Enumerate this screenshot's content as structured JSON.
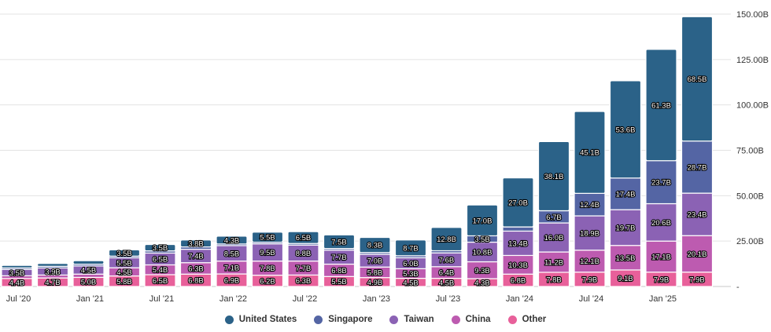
{
  "chart_data": {
    "type": "bar",
    "stacked": true,
    "categories": [
      "Jul '20",
      "Oct '20",
      "Jan '21",
      "Apr '21",
      "Jul '21",
      "Oct '21",
      "Jan '22",
      "Apr '22",
      "Jul '22",
      "Oct '22",
      "Jan '23",
      "Apr '23",
      "Jul '23",
      "Oct '23",
      "Jan '24",
      "Apr '24",
      "Jul '24",
      "Oct '24",
      "Jan '25",
      "Apr '25"
    ],
    "x_tick_labels": [
      {
        "index": 0,
        "label": "Jul '20"
      },
      {
        "index": 2,
        "label": "Jan '21"
      },
      {
        "index": 4,
        "label": "Jul '21"
      },
      {
        "index": 6,
        "label": "Jan '22"
      },
      {
        "index": 8,
        "label": "Jul '22"
      },
      {
        "index": 10,
        "label": "Jan '23"
      },
      {
        "index": 12,
        "label": "Jul '23"
      },
      {
        "index": 14,
        "label": "Jan '24"
      },
      {
        "index": 16,
        "label": "Jul '24"
      },
      {
        "index": 18,
        "label": "Jan '25"
      }
    ],
    "y_ticks": [
      0,
      25,
      50,
      75,
      100,
      125,
      150
    ],
    "y_tick_labels": [
      "-",
      "25.00B",
      "50.00B",
      "75.00B",
      "100.00B",
      "125.00B",
      "150.00B"
    ],
    "ylim": [
      0,
      150
    ],
    "y_axis_side": "right",
    "grid": true,
    "legend_position": "bottom-center",
    "unit_suffix": "B",
    "series": [
      {
        "name": "Other",
        "color": "#e8609a",
        "values": [
          4.4,
          4.7,
          5.0,
          5.8,
          6.5,
          6.8,
          6.9,
          6.2,
          6.3,
          5.5,
          4.9,
          4.5,
          4.5,
          4.3,
          6.8,
          7.8,
          7.9,
          9.1,
          7.9,
          7.9
        ],
        "labels": [
          "4.4B",
          "4.7B",
          "5.0B",
          "5.8B",
          "6.5B",
          "6.8B",
          "6.9B",
          "6.2B",
          "6.3B",
          "5.5B",
          "4.9B",
          "4.5B",
          "4.5B",
          "4.3B",
          "6.8B",
          "7.8B",
          "7.9B",
          "9.1B",
          "7.9B",
          "7.9B"
        ]
      },
      {
        "name": "China",
        "color": "#bd5bb0",
        "values": [
          1.5,
          1.6,
          1.8,
          4.5,
          5.4,
          6.3,
          7.1,
          7.8,
          7.7,
          6.8,
          5.8,
          5.3,
          6.4,
          9.3,
          10.3,
          11.2,
          12.1,
          13.5,
          17.1,
          20.1
        ],
        "labels": [
          "",
          "",
          "",
          "4.5B",
          "5.4B",
          "6.3B",
          "7.1B",
          "7.8B",
          "7.7B",
          "6.8B",
          "5.8B",
          "5.3B",
          "6.4B",
          "9.3B",
          "10.3B",
          "11.2B",
          "12.1B",
          "13.5B",
          "17.1B",
          "20.1B"
        ]
      },
      {
        "name": "Taiwan",
        "color": "#8b62b4",
        "values": [
          3.5,
          3.9,
          4.5,
          5.5,
          6.5,
          7.4,
          8.5,
          9.5,
          8.8,
          7.7,
          7.0,
          6.0,
          7.6,
          10.8,
          13.4,
          16.0,
          18.9,
          19.7,
          20.6,
          23.4
        ],
        "labels": [
          "3.5B",
          "3.9B",
          "4.5B",
          "5.5B",
          "6.5B",
          "7.4B",
          "8.5B",
          "9.5B",
          "8.8B",
          "7.7B",
          "7.0B",
          "6.0B",
          "7.6B",
          "10.8B",
          "13.4B",
          "16.0B",
          "18.9B",
          "19.7B",
          "20.6B",
          "23.4B"
        ]
      },
      {
        "name": "Singapore",
        "color": "#5465a4",
        "values": [
          0.8,
          0.9,
          1.0,
          0.9,
          1.2,
          1.3,
          0.9,
          0.9,
          0.9,
          0.9,
          1.0,
          1.1,
          1.2,
          3.5,
          2.3,
          6.7,
          12.4,
          17.4,
          23.7,
          28.7
        ],
        "labels": [
          "",
          "",
          "",
          "",
          "",
          "",
          "",
          "",
          "",
          "",
          "",
          "",
          "",
          "3.5B",
          "",
          "6.7B",
          "12.4B",
          "17.4B",
          "23.7B",
          "28.7B"
        ]
      },
      {
        "name": "United States",
        "color": "#2b6288",
        "values": [
          1.4,
          1.6,
          1.9,
          3.5,
          3.5,
          3.8,
          4.3,
          5.5,
          6.5,
          7.5,
          8.3,
          8.7,
          12.8,
          17.0,
          27.0,
          38.1,
          45.1,
          53.6,
          61.3,
          68.5
        ],
        "labels": [
          "",
          "",
          "",
          "3.5B",
          "3.5B",
          "3.8B",
          "4.3B",
          "5.5B",
          "6.5B",
          "7.5B",
          "8.3B",
          "8.7B",
          "12.8B",
          "17.0B",
          "27.0B",
          "38.1B",
          "45.1B",
          "53.6B",
          "61.3B",
          "68.5B"
        ]
      }
    ]
  },
  "legend": {
    "items": [
      {
        "label": "United States",
        "color": "#2b6288"
      },
      {
        "label": "Singapore",
        "color": "#5465a4"
      },
      {
        "label": "Taiwan",
        "color": "#8b62b4"
      },
      {
        "label": "China",
        "color": "#bd5bb0"
      },
      {
        "label": "Other",
        "color": "#e8609a"
      }
    ]
  }
}
